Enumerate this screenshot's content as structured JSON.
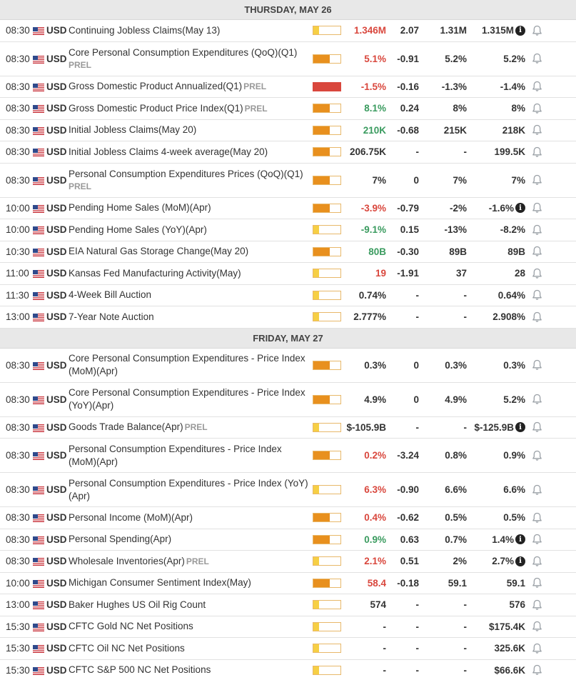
{
  "days": [
    {
      "header": "THURSDAY, MAY 26",
      "events": [
        {
          "time": "08:30",
          "currency": "USD",
          "name": "Continuing Jobless Claims(May 13)",
          "prel": "",
          "impact": 0.2,
          "actual": "1.346M",
          "actual_tone": "neg",
          "deviation": "2.07",
          "consensus": "1.31M",
          "previous": "1.315M",
          "info": true,
          "tall": false
        },
        {
          "time": "08:30",
          "currency": "USD",
          "name": "Core Personal Consumption Expenditures (QoQ)(Q1)",
          "prel": "PREL",
          "prel_block": true,
          "impact": 0.6,
          "actual": "5.1%",
          "actual_tone": "neg",
          "deviation": "-0.91",
          "consensus": "5.2%",
          "previous": "5.2%",
          "info": false,
          "tall": true
        },
        {
          "time": "08:30",
          "currency": "USD",
          "name": "Gross Domestic Product Annualized(Q1)",
          "prel": "PREL",
          "impact": 1.0,
          "impact_red": true,
          "actual": "-1.5%",
          "actual_tone": "neg",
          "deviation": "-0.16",
          "consensus": "-1.3%",
          "previous": "-1.4%",
          "info": false,
          "tall": false
        },
        {
          "time": "08:30",
          "currency": "USD",
          "name": "Gross Domestic Product Price Index(Q1)",
          "prel": "PREL",
          "impact": 0.6,
          "actual": "8.1%",
          "actual_tone": "pos",
          "deviation": "0.24",
          "consensus": "8%",
          "previous": "8%",
          "info": false,
          "tall": false
        },
        {
          "time": "08:30",
          "currency": "USD",
          "name": "Initial Jobless Claims(May 20)",
          "prel": "",
          "impact": 0.6,
          "actual": "210K",
          "actual_tone": "pos",
          "deviation": "-0.68",
          "consensus": "215K",
          "previous": "218K",
          "info": false,
          "tall": false
        },
        {
          "time": "08:30",
          "currency": "USD",
          "name": "Initial Jobless Claims 4-week average(May 20)",
          "prel": "",
          "impact": 0.6,
          "actual": "206.75K",
          "actual_tone": "neu",
          "deviation": "-",
          "consensus": "-",
          "previous": "199.5K",
          "info": false,
          "tall": false
        },
        {
          "time": "08:30",
          "currency": "USD",
          "name": "Personal Consumption Expenditures Prices (QoQ)(Q1)",
          "prel": "PREL",
          "prel_block": true,
          "impact": 0.6,
          "actual": "7%",
          "actual_tone": "neu",
          "deviation": "0",
          "consensus": "7%",
          "previous": "7%",
          "info": false,
          "tall": true
        },
        {
          "time": "10:00",
          "currency": "USD",
          "name": "Pending Home Sales (MoM)(Apr)",
          "prel": "",
          "impact": 0.6,
          "actual": "-3.9%",
          "actual_tone": "neg",
          "deviation": "-0.79",
          "consensus": "-2%",
          "previous": "-1.6%",
          "info": true,
          "tall": false
        },
        {
          "time": "10:00",
          "currency": "USD",
          "name": "Pending Home Sales (YoY)(Apr)",
          "prel": "",
          "impact": 0.2,
          "actual": "-9.1%",
          "actual_tone": "pos",
          "deviation": "0.15",
          "consensus": "-13%",
          "previous": "-8.2%",
          "info": false,
          "tall": false
        },
        {
          "time": "10:30",
          "currency": "USD",
          "name": "EIA Natural Gas Storage Change(May 20)",
          "prel": "",
          "impact": 0.6,
          "actual": "80B",
          "actual_tone": "pos",
          "deviation": "-0.30",
          "consensus": "89B",
          "previous": "89B",
          "info": false,
          "tall": false
        },
        {
          "time": "11:00",
          "currency": "USD",
          "name": "Kansas Fed Manufacturing Activity(May)",
          "prel": "",
          "impact": 0.2,
          "actual": "19",
          "actual_tone": "neg",
          "deviation": "-1.91",
          "consensus": "37",
          "previous": "28",
          "info": false,
          "tall": false
        },
        {
          "time": "11:30",
          "currency": "USD",
          "name": "4-Week Bill Auction",
          "prel": "",
          "impact": 0.2,
          "actual": "0.74%",
          "actual_tone": "neu",
          "deviation": "-",
          "consensus": "-",
          "previous": "0.64%",
          "info": false,
          "tall": false
        },
        {
          "time": "13:00",
          "currency": "USD",
          "name": "7-Year Note Auction",
          "prel": "",
          "impact": 0.2,
          "actual": "2.777%",
          "actual_tone": "neu",
          "deviation": "-",
          "consensus": "-",
          "previous": "2.908%",
          "info": false,
          "tall": false
        }
      ]
    },
    {
      "header": "FRIDAY, MAY 27",
      "events": [
        {
          "time": "08:30",
          "currency": "USD",
          "name": "Core Personal Consumption Expenditures - Price Index (MoM)(Apr)",
          "prel": "",
          "impact": 0.6,
          "actual": "0.3%",
          "actual_tone": "neu",
          "deviation": "0",
          "consensus": "0.3%",
          "previous": "0.3%",
          "info": false,
          "tall": true
        },
        {
          "time": "08:30",
          "currency": "USD",
          "name": "Core Personal Consumption Expenditures - Price Index (YoY)(Apr)",
          "prel": "",
          "impact": 0.6,
          "actual": "4.9%",
          "actual_tone": "neu",
          "deviation": "0",
          "consensus": "4.9%",
          "previous": "5.2%",
          "info": false,
          "tall": true
        },
        {
          "time": "08:30",
          "currency": "USD",
          "name": "Goods Trade Balance(Apr)",
          "prel": "PREL",
          "impact": 0.2,
          "actual": "$-105.9B",
          "actual_tone": "neu",
          "deviation": "-",
          "consensus": "-",
          "previous": "$-125.9B",
          "info": true,
          "tall": false
        },
        {
          "time": "08:30",
          "currency": "USD",
          "name": "Personal Consumption Expenditures - Price Index (MoM)(Apr)",
          "prel": "",
          "impact": 0.6,
          "actual": "0.2%",
          "actual_tone": "neg",
          "deviation": "-3.24",
          "consensus": "0.8%",
          "previous": "0.9%",
          "info": false,
          "tall": true
        },
        {
          "time": "08:30",
          "currency": "USD",
          "name": "Personal Consumption Expenditures - Price Index (YoY)(Apr)",
          "prel": "",
          "impact": 0.2,
          "actual": "6.3%",
          "actual_tone": "neg",
          "deviation": "-0.90",
          "consensus": "6.6%",
          "previous": "6.6%",
          "info": false,
          "tall": true
        },
        {
          "time": "08:30",
          "currency": "USD",
          "name": "Personal Income (MoM)(Apr)",
          "prel": "",
          "impact": 0.6,
          "actual": "0.4%",
          "actual_tone": "neg",
          "deviation": "-0.62",
          "consensus": "0.5%",
          "previous": "0.5%",
          "info": false,
          "tall": false
        },
        {
          "time": "08:30",
          "currency": "USD",
          "name": "Personal Spending(Apr)",
          "prel": "",
          "impact": 0.6,
          "actual": "0.9%",
          "actual_tone": "pos",
          "deviation": "0.63",
          "consensus": "0.7%",
          "previous": "1.4%",
          "info": true,
          "tall": false
        },
        {
          "time": "08:30",
          "currency": "USD",
          "name": "Wholesale Inventories(Apr)",
          "prel": "PREL",
          "impact": 0.2,
          "actual": "2.1%",
          "actual_tone": "neg",
          "deviation": "0.51",
          "consensus": "2%",
          "previous": "2.7%",
          "info": true,
          "tall": false
        },
        {
          "time": "10:00",
          "currency": "USD",
          "name": "Michigan Consumer Sentiment Index(May)",
          "prel": "",
          "impact": 0.6,
          "actual": "58.4",
          "actual_tone": "neg",
          "deviation": "-0.18",
          "consensus": "59.1",
          "previous": "59.1",
          "info": false,
          "tall": false
        },
        {
          "time": "13:00",
          "currency": "USD",
          "name": "Baker Hughes US Oil Rig Count",
          "prel": "",
          "impact": 0.2,
          "actual": "574",
          "actual_tone": "neu",
          "deviation": "-",
          "consensus": "-",
          "previous": "576",
          "info": false,
          "tall": false
        },
        {
          "time": "15:30",
          "currency": "USD",
          "name": "CFTC Gold NC Net Positions",
          "prel": "",
          "impact": 0.2,
          "actual": "-",
          "actual_tone": "neu",
          "deviation": "-",
          "consensus": "-",
          "previous": "$175.4K",
          "info": false,
          "tall": false
        },
        {
          "time": "15:30",
          "currency": "USD",
          "name": "CFTC Oil NC Net Positions",
          "prel": "",
          "impact": 0.2,
          "actual": "-",
          "actual_tone": "neu",
          "deviation": "-",
          "consensus": "-",
          "previous": "325.6K",
          "info": false,
          "tall": false
        },
        {
          "time": "15:30",
          "currency": "USD",
          "name": "CFTC S&P 500 NC Net Positions",
          "prel": "",
          "impact": 0.2,
          "actual": "-",
          "actual_tone": "neu",
          "deviation": "-",
          "consensus": "-",
          "previous": "$66.6K",
          "info": false,
          "tall": false
        }
      ]
    }
  ],
  "icons": {
    "flag": "us-flag-icon",
    "bell": "bell-icon",
    "info": "info-icon"
  },
  "colors": {
    "positive": "#3a9b5f",
    "negative": "#d9473d",
    "impact_high": "#e8901e",
    "impact_low": "#f6cf45",
    "impact_red": "#d9473d"
  }
}
